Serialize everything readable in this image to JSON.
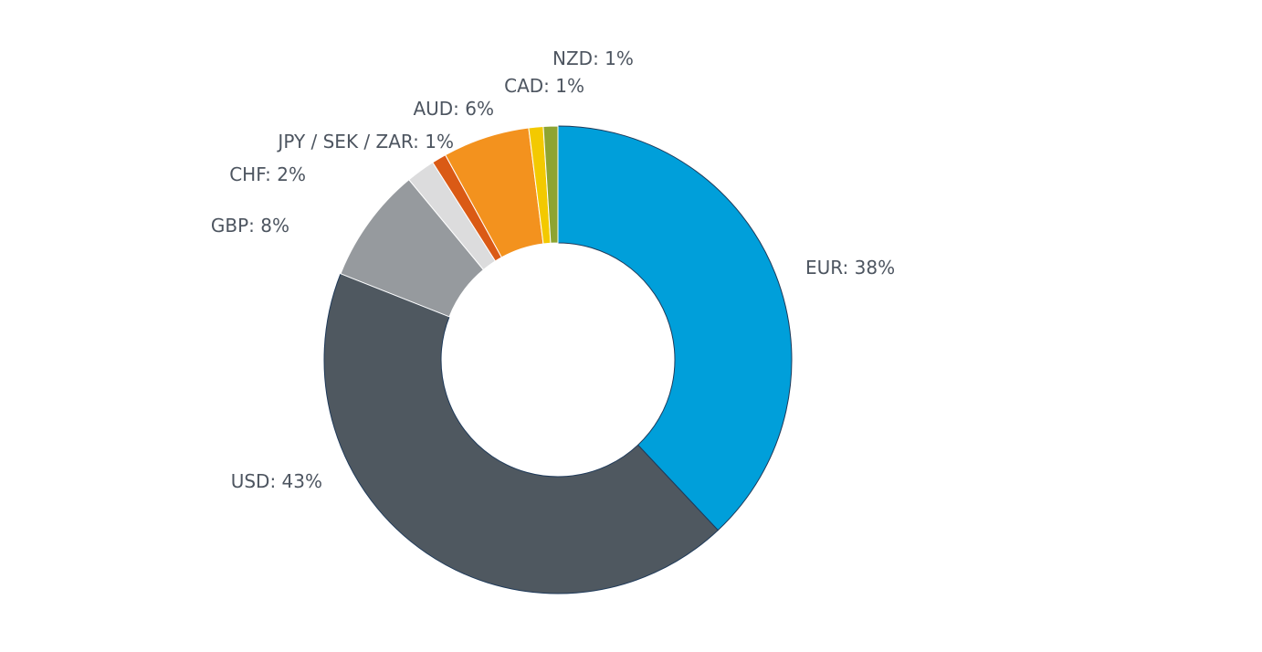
{
  "chart_data": {
    "type": "pie",
    "hole": true,
    "title": "",
    "legend": "none",
    "slices": [
      {
        "label": "EUR",
        "value": 38,
        "text": "EUR: 38%",
        "color": "#009fda"
      },
      {
        "label": "USD",
        "value": 43,
        "text": "USD: 43%",
        "color": "#4f5860"
      },
      {
        "label": "GBP",
        "value": 8,
        "text": "GBP: 8%",
        "color": "#969a9e"
      },
      {
        "label": "CHF",
        "value": 2,
        "text": "CHF: 2%",
        "color": "#dcdcdd"
      },
      {
        "label": "JPY / SEK / ZAR",
        "value": 1,
        "text": "JPY / SEK / ZAR: 1%",
        "color": "#da5a15"
      },
      {
        "label": "AUD",
        "value": 6,
        "text": "AUD: 6%",
        "color": "#f3921e"
      },
      {
        "label": "CAD",
        "value": 1,
        "text": "CAD: 1%",
        "color": "#f3c900"
      },
      {
        "label": "NZD",
        "value": 1,
        "text": "NZD: 1%",
        "color": "#8ea431"
      }
    ]
  }
}
